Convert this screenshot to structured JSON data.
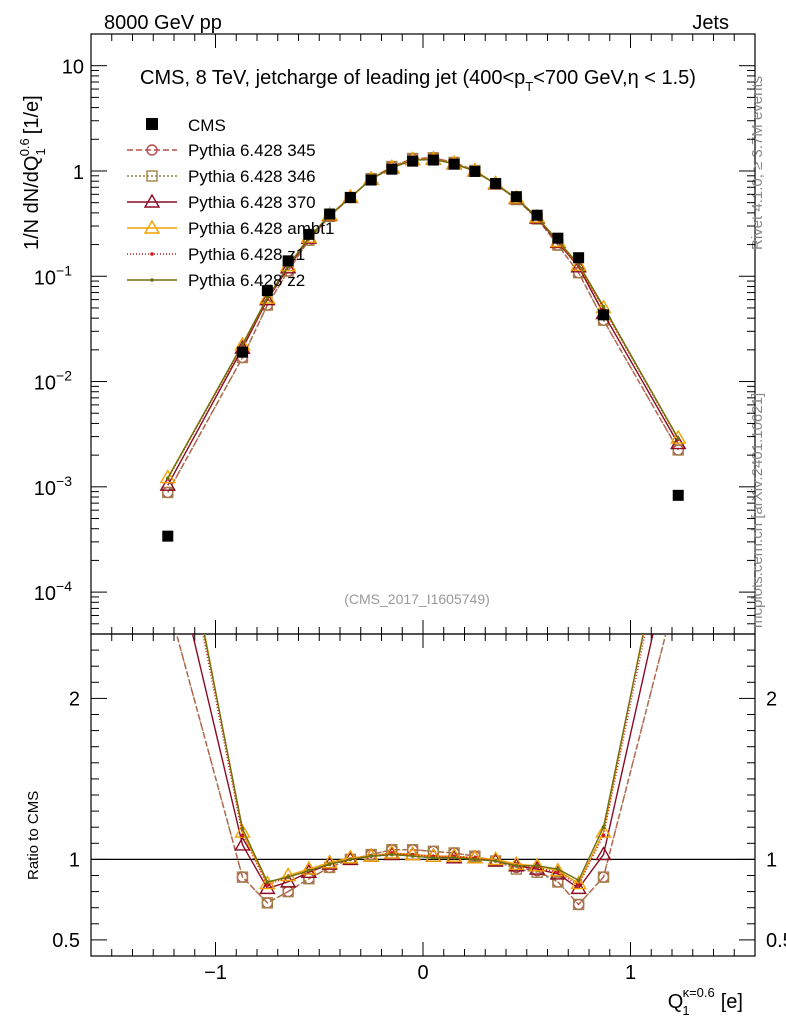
{
  "header": {
    "left": "8000 GeV pp",
    "right": "Jets"
  },
  "side_labels": {
    "top": "Rivet 4.1.0, ≥ 3.7M events",
    "bottom": "mcplots.cern.ch [arXiv:2401.10621]"
  },
  "chart_data": {
    "type": "scatter",
    "title": "CMS, 8 TeV, jetcharge of leading jet (400<p_T<700 GeV,η < 1.5)",
    "title_parts": {
      "pre": "CMS, 8 TeV, jetcharge of leading jet (400<p",
      "sub": "T",
      "post": "<700 GeV,η < 1.5)"
    },
    "analysis_tag": "(CMS_2017_I1605749)",
    "ylabel": {
      "main": "1/N dN/dQ",
      "sub": "1",
      "sup": "0.6",
      "unit": "[1/e]"
    },
    "xlabel": {
      "main": "Q",
      "sub": "1",
      "sup": "κ=0.6",
      "unit": "[e]"
    },
    "ratio_ylabel": "Ratio to CMS",
    "xlim": [
      -1.6,
      1.6
    ],
    "ylim_log": [
      4e-05,
      20
    ],
    "ratio_ylim": [
      0.4,
      2.4
    ],
    "x_tick_labels": [
      "−1",
      "0",
      "1"
    ],
    "x_ticks": [
      -1,
      0,
      1
    ],
    "y_tick_values": [
      0.0001,
      0.001,
      0.01,
      0.1,
      1,
      10
    ],
    "y_tick_labels": [
      {
        "base": "10",
        "exp": "−4"
      },
      {
        "base": "10",
        "exp": "−3"
      },
      {
        "base": "10",
        "exp": "−2"
      },
      {
        "base": "10",
        "exp": "−1"
      },
      {
        "base": "1",
        "exp": ""
      },
      {
        "base": "10",
        "exp": ""
      }
    ],
    "ratio_ticks": [
      0.5,
      1,
      2
    ],
    "ratio_tick_labels": [
      "0.5",
      "1",
      "2"
    ],
    "x": [
      -1.23,
      -0.87,
      -0.75,
      -0.65,
      -0.55,
      -0.45,
      -0.35,
      -0.25,
      -0.15,
      -0.05,
      0.05,
      0.15,
      0.25,
      0.35,
      0.45,
      0.55,
      0.65,
      0.75,
      0.87,
      1.23
    ],
    "data": {
      "name": "CMS",
      "values": [
        0.00034,
        0.019,
        0.073,
        0.14,
        0.25,
        0.39,
        0.56,
        0.82,
        1.04,
        1.24,
        1.27,
        1.16,
        0.99,
        0.76,
        0.57,
        0.38,
        0.23,
        0.15,
        0.043,
        0.00083
      ]
    },
    "series": [
      {
        "name": "Pythia 6.428 345",
        "color": "#b84c4c",
        "dash": "6,3",
        "marker": "circle",
        "ratio": [
          2.6,
          0.89,
          0.73,
          0.8,
          0.88,
          0.95,
          1.0,
          1.03,
          1.06,
          1.06,
          1.05,
          1.04,
          1.02,
          0.99,
          0.95,
          0.93,
          0.86,
          0.72,
          0.89,
          2.7
        ]
      },
      {
        "name": "Pythia 6.428 346",
        "color": "#a08048",
        "dash": "2,2",
        "marker": "square",
        "ratio": [
          2.6,
          0.89,
          0.73,
          0.8,
          0.88,
          0.95,
          1.0,
          1.03,
          1.06,
          1.06,
          1.05,
          1.04,
          1.02,
          0.99,
          0.94,
          0.92,
          0.86,
          0.72,
          0.89,
          2.7
        ]
      },
      {
        "name": "Pythia 6.428 370",
        "color": "#8b0a24",
        "dash": "",
        "marker": "triangle",
        "ratio": [
          3.05,
          1.09,
          0.82,
          0.86,
          0.92,
          0.97,
          1.0,
          1.02,
          1.03,
          1.03,
          1.02,
          1.01,
          1.01,
          0.99,
          0.96,
          0.94,
          0.91,
          0.82,
          1.03,
          3.1
        ]
      },
      {
        "name": "Pythia 6.428 ambt1",
        "color": "#f0a000",
        "dash": "",
        "marker": "triangle",
        "ratio": [
          3.6,
          1.17,
          0.85,
          0.9,
          0.94,
          0.98,
          1.01,
          1.02,
          1.04,
          1.03,
          1.02,
          1.02,
          1.01,
          1.0,
          0.97,
          0.96,
          0.93,
          0.85,
          1.17,
          3.5
        ]
      },
      {
        "name": "Pythia 6.428 z1",
        "color": "#cc1818",
        "dash": "1,2",
        "marker": "dot",
        "ratio": [
          3.5,
          1.15,
          0.84,
          0.89,
          0.93,
          0.97,
          1.0,
          1.02,
          1.04,
          1.03,
          1.02,
          1.02,
          1.01,
          0.99,
          0.96,
          0.95,
          0.92,
          0.84,
          1.15,
          3.4
        ]
      },
      {
        "name": "Pythia 6.428 z2",
        "color": "#6b7010",
        "dash": "",
        "marker": "dot",
        "ratio": [
          3.55,
          1.19,
          0.86,
          0.89,
          0.93,
          0.97,
          1.0,
          1.02,
          1.03,
          1.02,
          1.01,
          1.01,
          1.0,
          0.99,
          0.96,
          0.96,
          0.94,
          0.87,
          1.2,
          3.45
        ]
      }
    ],
    "legend_position": "top-left"
  }
}
